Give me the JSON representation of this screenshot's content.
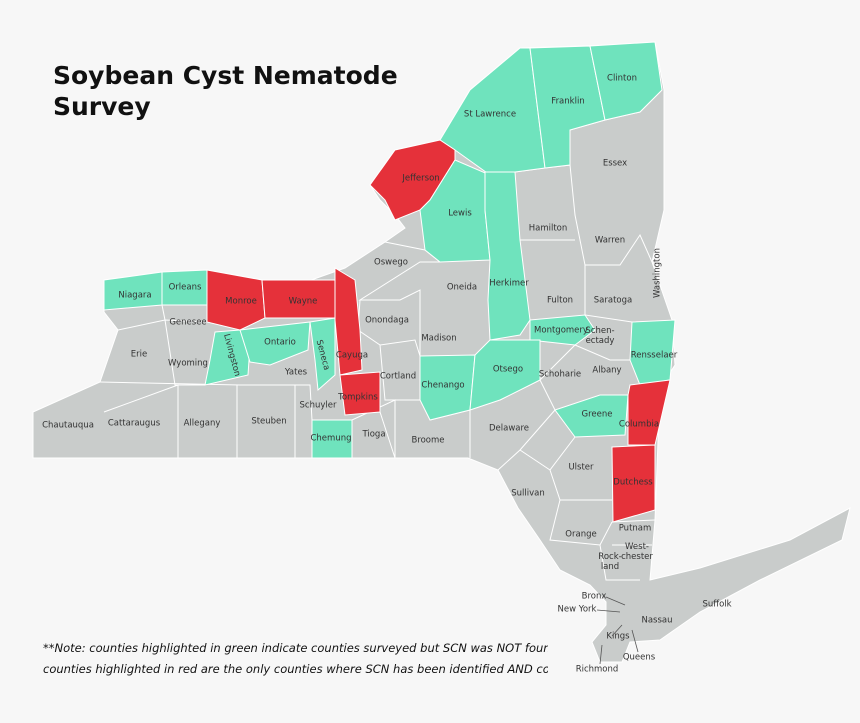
{
  "title": [
    "Soybean Cyst Nematode",
    "Survey"
  ],
  "state_color": "#c9cccb",
  "counties": [
    {
      "name": "St Lawrence",
      "color": "#6fe3bd"
    },
    {
      "name": "Franklin",
      "color": "#6fe3bd"
    },
    {
      "name": "Clinton",
      "color": "#6fe3bd"
    },
    {
      "name": "Essex",
      "color": "#c9cccb"
    },
    {
      "name": "Jefferson",
      "color": "#e5313a"
    },
    {
      "name": "Lewis",
      "color": "#6fe3bd"
    },
    {
      "name": "Hamilton",
      "color": "#c9cccb"
    },
    {
      "name": "Warren",
      "color": "#c9cccb"
    },
    {
      "name": "Washington",
      "color": "#c9cccb"
    },
    {
      "name": "Oswego",
      "color": "#c9cccb"
    },
    {
      "name": "Oneida",
      "color": "#c9cccb"
    },
    {
      "name": "Herkimer",
      "color": "#6fe3bd"
    },
    {
      "name": "Fulton",
      "color": "#c9cccb"
    },
    {
      "name": "Saratoga",
      "color": "#c9cccb"
    },
    {
      "name": "Niagara",
      "color": "#6fe3bd"
    },
    {
      "name": "Orleans",
      "color": "#6fe3bd"
    },
    {
      "name": "Monroe",
      "color": "#e5313a"
    },
    {
      "name": "Wayne",
      "color": "#e5313a"
    },
    {
      "name": "Genesee",
      "color": "#c9cccb"
    },
    {
      "name": "Livingston",
      "color": "#6fe3bd"
    },
    {
      "name": "Ontario",
      "color": "#6fe3bd"
    },
    {
      "name": "Seneca",
      "color": "#6fe3bd"
    },
    {
      "name": "Cayuga",
      "color": "#e5313a"
    },
    {
      "name": "Onondaga",
      "color": "#c9cccb"
    },
    {
      "name": "Madison",
      "color": "#c9cccb"
    },
    {
      "name": "Montgomery",
      "color": "#6fe3bd"
    },
    {
      "name": [
        "Schen-",
        "ectady"
      ],
      "color": "#c9cccb"
    },
    {
      "name": "Rensselaer",
      "color": "#6fe3bd"
    },
    {
      "name": "Erie",
      "color": "#c9cccb"
    },
    {
      "name": "Wyoming",
      "color": "#c9cccb"
    },
    {
      "name": "Yates",
      "color": "#c9cccb"
    },
    {
      "name": "Cortland",
      "color": "#c9cccb"
    },
    {
      "name": "Chenango",
      "color": "#6fe3bd"
    },
    {
      "name": "Otsego",
      "color": "#6fe3bd"
    },
    {
      "name": "Schoharie",
      "color": "#c9cccb"
    },
    {
      "name": "Albany",
      "color": "#c9cccb",
      "label_color": "#eeeeee"
    },
    {
      "name": "Tompkins",
      "color": "#e5313a"
    },
    {
      "name": "Schuyler",
      "color": "#c9cccb"
    },
    {
      "name": "Chautauqua",
      "color": "#c9cccb"
    },
    {
      "name": "Cattaraugus",
      "color": "#c9cccb"
    },
    {
      "name": "Allegany",
      "color": "#c9cccb"
    },
    {
      "name": "Steuben",
      "color": "#c9cccb"
    },
    {
      "name": "Chemung",
      "color": "#6fe3bd"
    },
    {
      "name": "Tioga",
      "color": "#c9cccb"
    },
    {
      "name": "Broome",
      "color": "#c9cccb"
    },
    {
      "name": "Delaware",
      "color": "#c9cccb"
    },
    {
      "name": "Greene",
      "color": "#6fe3bd"
    },
    {
      "name": "Columbia",
      "color": "#e5313a"
    },
    {
      "name": "Ulster",
      "color": "#c9cccb"
    },
    {
      "name": "Sullivan",
      "color": "#c9cccb"
    },
    {
      "name": "Dutchess",
      "color": "#e5313a"
    },
    {
      "name": "Orange",
      "color": "#c9cccb"
    },
    {
      "name": "Putnam",
      "color": "#c9cccb"
    },
    {
      "name": [
        "West-",
        "chester"
      ],
      "color": "#c9cccb"
    },
    {
      "name": [
        "Rock-",
        "land"
      ],
      "color": "#c9cccb"
    },
    {
      "name": "Bronx",
      "color": "#c9cccb"
    },
    {
      "name": "New York",
      "color": "#c9cccb"
    },
    {
      "name": "Nassau",
      "color": "#c9cccb"
    },
    {
      "name": "Suffolk",
      "color": "#c9cccb"
    },
    {
      "name": "Kings",
      "color": "#c9cccb"
    },
    {
      "name": "Queens",
      "color": "#c9cccb"
    },
    {
      "name": "Richmond",
      "color": "#c9cccb"
    }
  ],
  "note": [
    "**Note: counties highlighted in green indicate counties surveyed but SCN was NOT found;",
    "counties highlighted in red are the only counties where SCN has been identified AND confirmed"
  ]
}
